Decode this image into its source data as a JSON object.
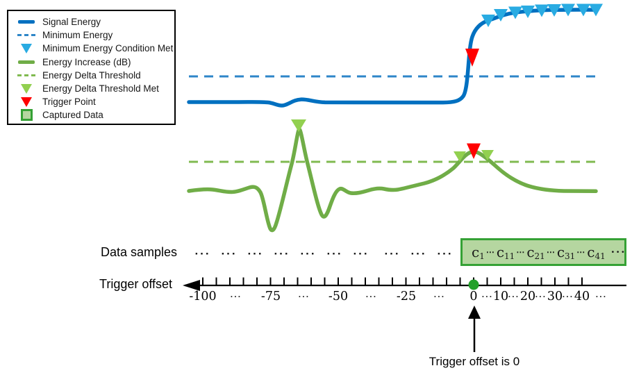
{
  "legend": {
    "items": [
      {
        "label": "Signal Energy",
        "marker": "thick-line"
      },
      {
        "label": "Minimum Energy",
        "marker": "dashed-line"
      },
      {
        "label": "Minimum Energy Condition Met",
        "marker": "triangle-down"
      },
      {
        "label": "Energy Increase (dB)",
        "marker": "thick-line"
      },
      {
        "label": "Energy Delta Threshold",
        "marker": "dashed-line"
      },
      {
        "label": "Energy Delta Threshold Met",
        "marker": "triangle-down"
      },
      {
        "label": "Trigger Point",
        "marker": "triangle-down"
      },
      {
        "label": "Captured Data",
        "marker": "square"
      }
    ]
  },
  "labels": {
    "data_samples": "Data samples",
    "trigger_offset": "Trigger offset",
    "trigger_annotation": "Trigger offset is 0",
    "ellipsis": "···"
  },
  "captured": {
    "dots": "⋯",
    "cells": [
      {
        "base": "c",
        "sub": "1"
      },
      {
        "base": "c",
        "sub": "11"
      },
      {
        "base": "c",
        "sub": "21"
      },
      {
        "base": "c",
        "sub": "31"
      },
      {
        "base": "c",
        "sub": "41"
      }
    ]
  },
  "axis": {
    "tick_labels": [
      "-100",
      "···",
      "-75",
      "···",
      "-50",
      "···",
      "-25",
      "···",
      "0",
      "···",
      "10",
      "···",
      "20",
      "···",
      "30",
      "···",
      "40",
      "···"
    ]
  },
  "colors": {
    "signal_energy": "#0070C0",
    "minimum_energy": "#2E86C8",
    "min_energy_met": "#29ABE2",
    "energy_increase": "#70AD47",
    "energy_delta_threshold": "#80BA50",
    "delta_threshold_met": "#92D050",
    "trigger_point": "#FF0000",
    "captured_fill": "#B5D6A0",
    "captured_border": "#35A135",
    "zero_dot": "#23A02A",
    "axis": "#000000"
  },
  "chart_data": {
    "type": "line",
    "x_axis": {
      "label": "Trigger offset",
      "tick_labels": [
        -100,
        -75,
        -50,
        -25,
        0,
        10,
        20,
        30,
        40
      ],
      "range": [
        -107,
        57
      ]
    },
    "values_normalized": true,
    "series": [
      {
        "name": "Signal Energy",
        "style": "solid",
        "approx_points": [
          [
            -105,
            0.0
          ],
          [
            -80,
            0.0
          ],
          [
            -73,
            -0.04
          ],
          [
            -63,
            0.04
          ],
          [
            -55,
            0.0
          ],
          [
            -20,
            0.0
          ],
          [
            -5,
            0.0
          ],
          [
            -2,
            0.05
          ],
          [
            0,
            0.47
          ],
          [
            1,
            0.7
          ],
          [
            3,
            0.84
          ],
          [
            5,
            0.88
          ],
          [
            10,
            0.94
          ],
          [
            15,
            0.97
          ],
          [
            20,
            0.985
          ],
          [
            30,
            0.995
          ],
          [
            45,
            1.0
          ]
        ]
      },
      {
        "name": "Energy Increase (dB)",
        "style": "solid",
        "approx_points": [
          [
            -105,
            0
          ],
          [
            -90,
            0.05
          ],
          [
            -82,
            0.15
          ],
          [
            -79,
            0.05
          ],
          [
            -76,
            -0.9
          ],
          [
            -75,
            -1.38
          ],
          [
            -72,
            -0.8
          ],
          [
            -68,
            0.8
          ],
          [
            -65,
            2.26
          ],
          [
            -62,
            0.8
          ],
          [
            -58,
            -0.5
          ],
          [
            -55,
            -0.88
          ],
          [
            -50,
            0.07
          ],
          [
            -45,
            0.0
          ],
          [
            -38,
            0.1
          ],
          [
            -30,
            0.15
          ],
          [
            -22,
            0.3
          ],
          [
            -15,
            0.55
          ],
          [
            -8,
            0.95
          ],
          [
            -5,
            1.2
          ],
          [
            0,
            1.35
          ],
          [
            5,
            1.25
          ],
          [
            9,
            0.85
          ],
          [
            15,
            0.45
          ],
          [
            22,
            0.2
          ],
          [
            30,
            0.07
          ],
          [
            45,
            0.0
          ]
        ]
      }
    ],
    "thresholds": [
      {
        "name": "Minimum Energy",
        "applies_to": "Signal Energy",
        "value": 0.28,
        "style": "dashed"
      },
      {
        "name": "Energy Delta Threshold",
        "applies_to": "Energy Increase (dB)",
        "value": 1.0,
        "style": "dashed"
      }
    ],
    "markers": [
      {
        "name": "Minimum Energy Condition Met",
        "series": "Signal Energy",
        "offsets": [
          5,
          10,
          16,
          21,
          26,
          31,
          36,
          42,
          47
        ]
      },
      {
        "name": "Energy Delta Threshold Met",
        "series": "Energy Increase (dB)",
        "offsets": [
          -65,
          -5,
          5
        ]
      },
      {
        "name": "Trigger Point",
        "offsets": [
          0
        ],
        "note": "shown on both curves at offset 0"
      }
    ],
    "captured_samples": "c1 … c11 … c21 … c31 … c41 … starting at trigger offset 0"
  }
}
